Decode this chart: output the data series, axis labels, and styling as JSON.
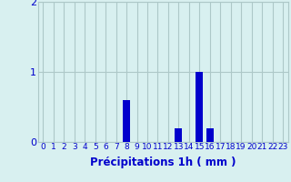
{
  "hours": [
    0,
    1,
    2,
    3,
    4,
    5,
    6,
    7,
    8,
    9,
    10,
    11,
    12,
    13,
    14,
    15,
    16,
    17,
    18,
    19,
    20,
    21,
    22,
    23
  ],
  "values": [
    0,
    0,
    0,
    0,
    0,
    0,
    0,
    0,
    0.6,
    0,
    0,
    0,
    0,
    0.2,
    0,
    1.0,
    0.2,
    0,
    0,
    0,
    0,
    0,
    0,
    0
  ],
  "bar_color": "#0000cc",
  "background_color": "#d8f0f0",
  "grid_color": "#adc8c8",
  "text_color": "#0000cc",
  "xlabel": "Précipitations 1h ( mm )",
  "ylim": [
    0,
    2
  ],
  "yticks": [
    0,
    1,
    2
  ],
  "xlim": [
    -0.5,
    23.5
  ],
  "tick_fontsize": 6.5,
  "label_fontsize": 8.5
}
